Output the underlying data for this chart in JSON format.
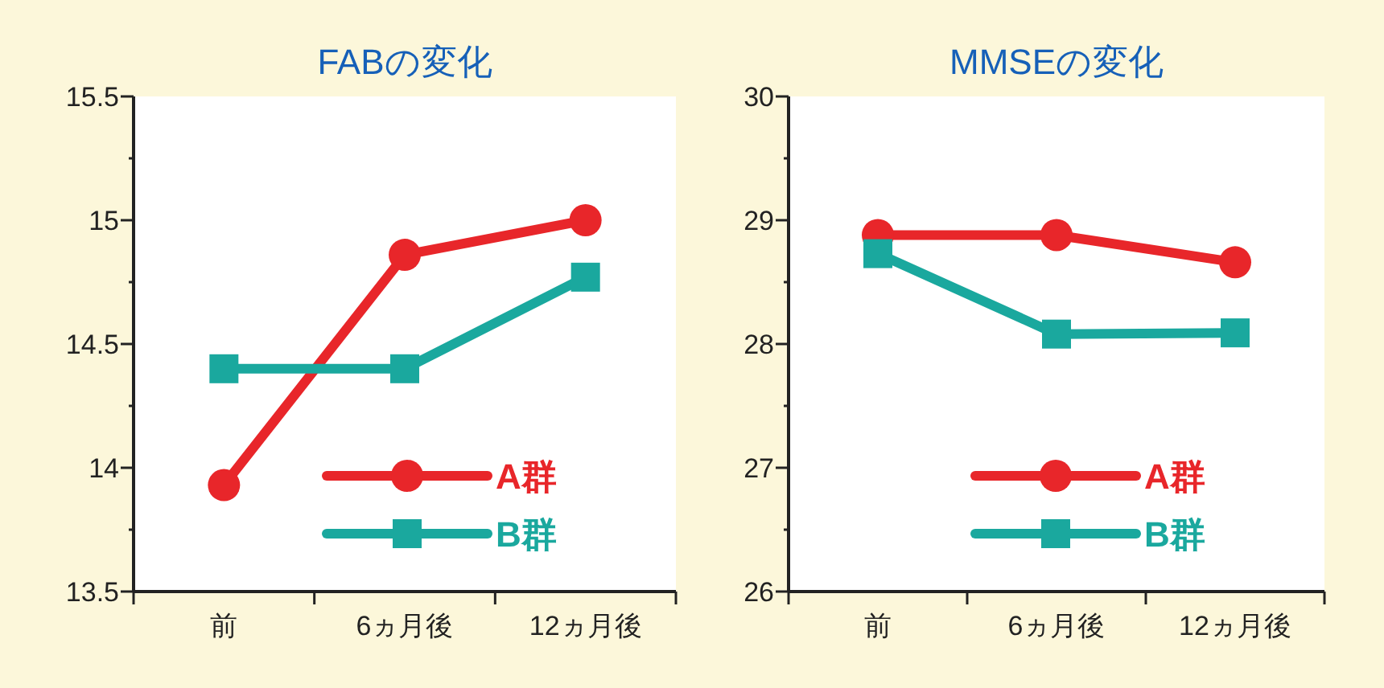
{
  "chart_data": [
    {
      "type": "line",
      "title": "FABの変化",
      "categories": [
        "前",
        "6ヵ月後",
        "12ヵ月後"
      ],
      "series": [
        {
          "name": "A群",
          "color": "#e8262a",
          "marker": "circle",
          "values": [
            13.93,
            14.86,
            15.0
          ]
        },
        {
          "name": "B群",
          "color": "#1aa89e",
          "marker": "square",
          "values": [
            14.4,
            14.4,
            14.77
          ]
        }
      ],
      "ylim": [
        13.5,
        15.5
      ],
      "yticks": [
        13.5,
        {
          "value": 13.75,
          "label": null
        },
        14,
        {
          "value": 14.25,
          "label": null
        },
        14.5,
        {
          "value": 14.75,
          "label": null
        },
        15,
        {
          "value": 15.25,
          "label": null
        },
        15.5
      ],
      "grid": false,
      "legend": "bottom right"
    },
    {
      "type": "line",
      "title": "MMSEの変化",
      "categories": [
        "前",
        "6ヵ月後",
        "12ヵ月後"
      ],
      "series": [
        {
          "name": "A群",
          "color": "#e8262a",
          "marker": "circle",
          "values": [
            28.88,
            28.88,
            28.66
          ]
        },
        {
          "name": "B群",
          "color": "#1aa89e",
          "marker": "square",
          "values": [
            28.73,
            28.08,
            28.09
          ]
        }
      ],
      "ylim": [
        26,
        30
      ],
      "yticks": [
        26,
        {
          "value": 26.5,
          "label": null
        },
        27,
        {
          "value": 27.5,
          "label": null
        },
        28,
        {
          "value": 28.5,
          "label": null
        },
        29,
        {
          "value": 29.5,
          "label": null
        },
        30
      ],
      "grid": false,
      "legend": "bottom right"
    }
  ]
}
